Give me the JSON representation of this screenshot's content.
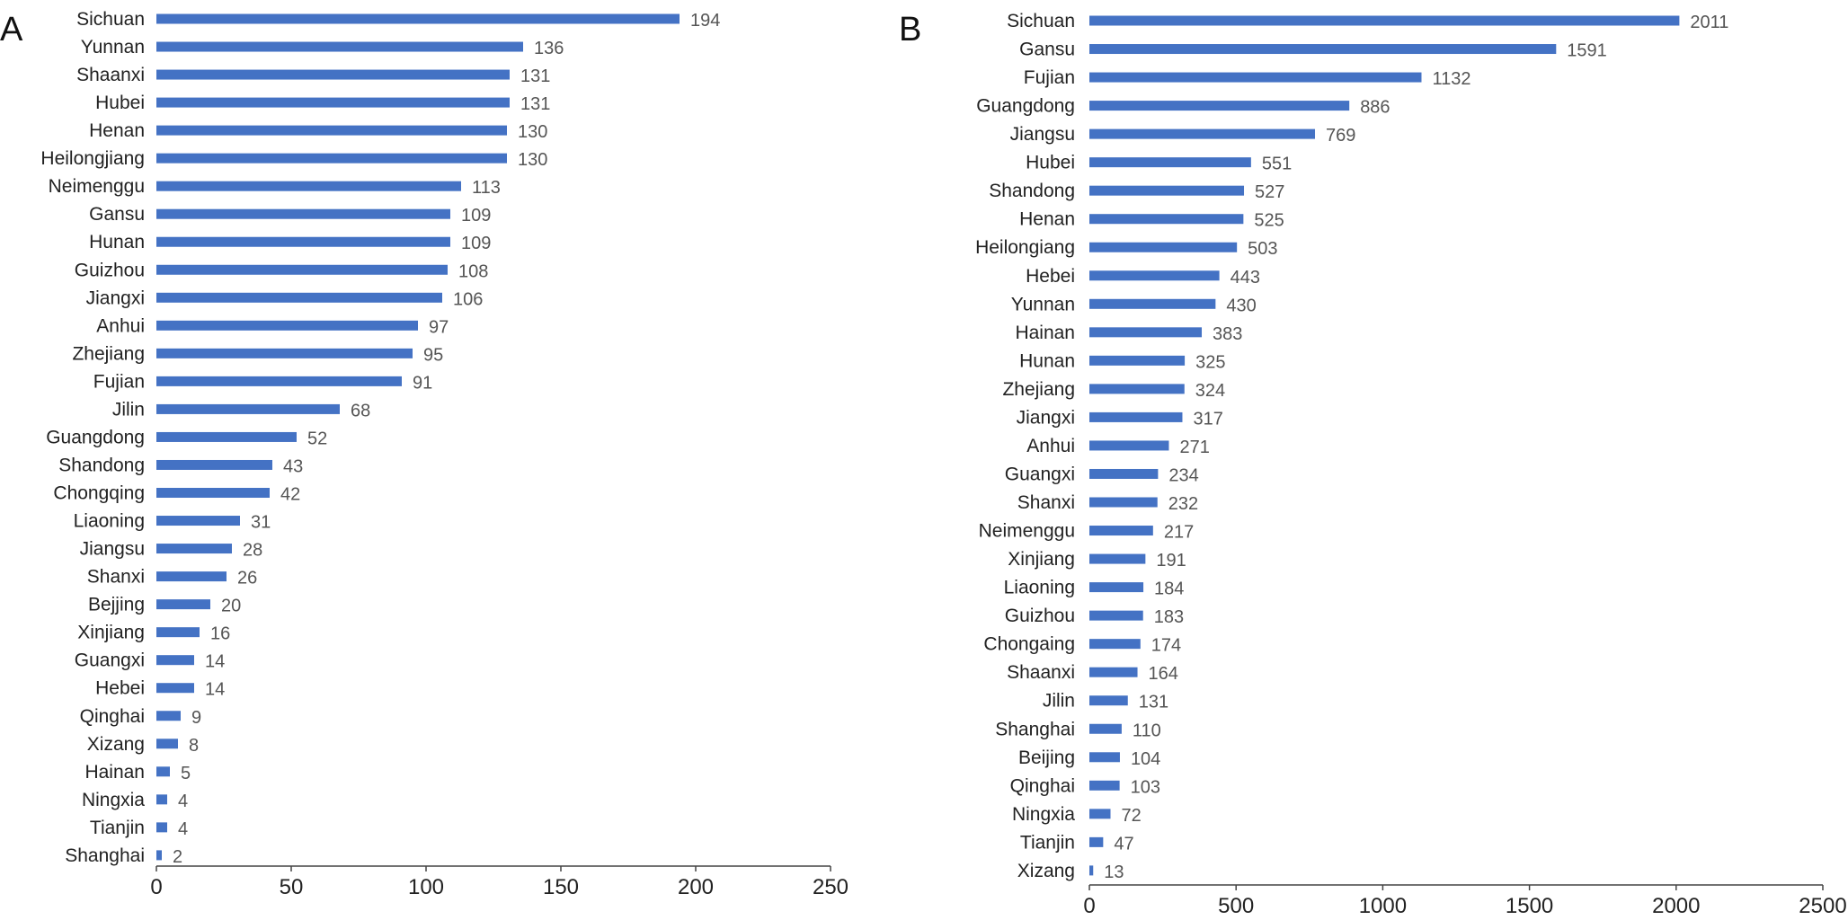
{
  "colors": {
    "bar": "#4472C4",
    "axis": "#444444",
    "text": "#222222",
    "value_text": "#555555"
  },
  "chart_data": [
    {
      "panel": "A",
      "type": "bar",
      "orientation": "horizontal",
      "title": "",
      "xlabel": "",
      "ylabel": "",
      "xlim": [
        0,
        250
      ],
      "xticks": [
        0,
        50,
        100,
        150,
        200,
        250
      ],
      "grid": false,
      "categories": [
        "Sichuan",
        "Yunnan",
        "Shaanxi",
        "Hubei",
        "Henan",
        "Heilongjiang",
        "Neimenggu",
        "Gansu",
        "Hunan",
        "Guizhou",
        "Jiangxi",
        "Anhui",
        "Zhejiang",
        "Fujian",
        "Jilin",
        "Guangdong",
        "Shandong",
        "Chongqing",
        "Liaoning",
        "Jiangsu",
        "Shanxi",
        "Bejjing",
        "Xinjiang",
        "Guangxi",
        "Hebei",
        "Qinghai",
        "Xizang",
        "Hainan",
        "Ningxia",
        "Tianjin",
        "Shanghai"
      ],
      "values": [
        194,
        136,
        131,
        131,
        130,
        130,
        113,
        109,
        109,
        108,
        106,
        97,
        95,
        91,
        68,
        52,
        43,
        42,
        31,
        28,
        26,
        20,
        16,
        14,
        14,
        9,
        8,
        5,
        4,
        4,
        2
      ]
    },
    {
      "panel": "B",
      "type": "bar",
      "orientation": "horizontal",
      "title": "",
      "xlabel": "",
      "ylabel": "",
      "xlim": [
        0,
        2500
      ],
      "xticks": [
        0,
        500,
        1000,
        1500,
        2000,
        2500
      ],
      "grid": false,
      "categories": [
        "Sichuan",
        "Gansu",
        "Fujian",
        "Guangdong",
        "Jiangsu",
        "Hubei",
        "Shandong",
        "Henan",
        "Heilongiang",
        "Hebei",
        "Yunnan",
        "Hainan",
        "Hunan",
        "Zhejiang",
        "Jiangxi",
        "Anhui",
        "Guangxi",
        "Shanxi",
        "Neimenggu",
        "Xinjiang",
        "Liaoning",
        "Guizhou",
        "Chongaing",
        "Shaanxi",
        "Jilin",
        "Shanghai",
        "Beijing",
        "Qinghai",
        "Ningxia",
        "Tianjin",
        "Xizang"
      ],
      "values": [
        2011,
        1591,
        1132,
        886,
        769,
        551,
        527,
        525,
        503,
        443,
        430,
        383,
        325,
        324,
        317,
        271,
        234,
        232,
        217,
        191,
        184,
        183,
        174,
        164,
        131,
        110,
        104,
        103,
        72,
        47,
        13
      ]
    }
  ]
}
